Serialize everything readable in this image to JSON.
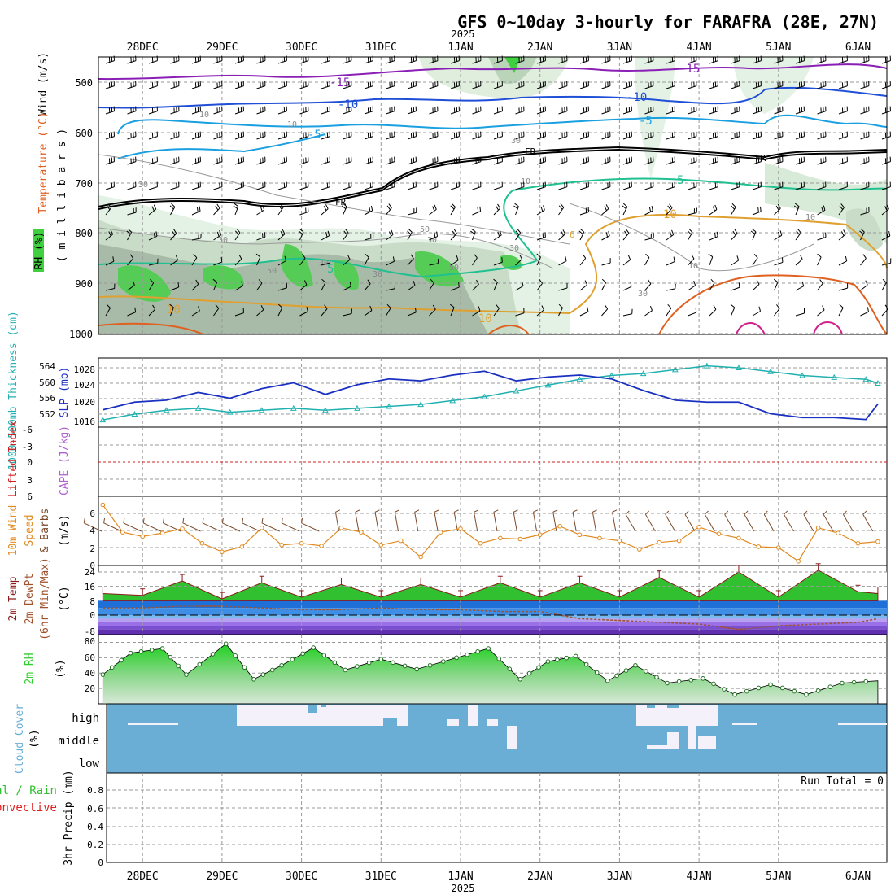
{
  "title": "GFS 0~10day 3-hourly for FARAFRA (28E, 27N)",
  "colors": {
    "rh_green": "#3fcf3f",
    "rh_light": "#e4f2e6",
    "rh_mid": "#c8dcc8",
    "rh_dark": "#a8bba8",
    "temp_purple": "#8a1fb5",
    "temp_blue": "#1f4fd6",
    "temp_cyan": "#1aa0e0",
    "temp_fr": "#000000",
    "temp_teal": "#20c090",
    "temp_orange": "#e0a030",
    "temp_red_orange": "#e06020",
    "temp_magenta": "#d0208a",
    "thickness": "#20b0b0",
    "slp": "#1a30c0",
    "lifted_index": "#d02020",
    "cape": "#b060d0",
    "wind10m": "#e08a20",
    "barb_gray": "#555555",
    "temp_fill_green": "#30c030",
    "dewpt": "#a0522d",
    "rh2m_green": "#2fcf2f",
    "cloud_blue": "#6aaed6",
    "cloud_white": "#f4f1fa",
    "precip_green": "#30c030",
    "precip_red": "#e02020"
  },
  "dates": {
    "labels": [
      "28DEC",
      "29DEC",
      "30DEC",
      "31DEC",
      "1JAN",
      "2JAN",
      "3JAN",
      "4JAN",
      "5JAN",
      "6JAN"
    ],
    "year_label": "2025",
    "year_at": "1JAN"
  },
  "panels": {
    "upper": {
      "ylabels": {
        "wind": "Wind (m/s)",
        "temp": "Temperature (°C)",
        "rh": "RH (%)",
        "pressure": "( m i l l i b a r s )"
      },
      "pressure_ticks": [
        500,
        600,
        700,
        800,
        900,
        1000
      ],
      "contour_labels": [
        "-15",
        "-15",
        "-10",
        "-10",
        "-5",
        "-5",
        "FR",
        "FR",
        "FR",
        "5",
        "5",
        "10",
        "10",
        "10",
        "6"
      ],
      "rh_labels": [
        "30",
        "30",
        "30",
        "50",
        "30",
        "10",
        "10",
        "30",
        "50",
        "30",
        "10",
        "10",
        "30",
        "10",
        "30",
        "50"
      ]
    },
    "slp": {
      "ylabel_thick": "1000-500mb Thickness (dm)",
      "ylabel_slp": "SLP (mb)",
      "thick_ticks": [
        "564",
        "560",
        "556",
        "552"
      ],
      "slp_ticks": [
        "1028",
        "1024",
        "1020",
        "1016"
      ]
    },
    "li": {
      "ylabel_li": "Lifted Index",
      "ylabel_cape": "CAPE (J/kg)",
      "ticks": [
        "-6",
        "-3",
        "0",
        "3",
        "6"
      ]
    },
    "wind": {
      "ylabel1": "10m Wind",
      "ylabel2": "Speed",
      "ylabel3": "& Barbs",
      "unit": "(m/s)",
      "ticks": [
        "6",
        "4",
        "2",
        "0"
      ]
    },
    "temp2m": {
      "ylabel1": "2m Temp",
      "ylabel2": "2m DewPt",
      "ylabel3": "(6hr Min/Max)",
      "unit": "(°C)",
      "ticks": [
        "24",
        "16",
        "8",
        "0",
        "-8"
      ]
    },
    "rh2m": {
      "ylabel": "2m RH",
      "unit": "(%)",
      "ticks": [
        "80",
        "60",
        "40",
        "20"
      ]
    },
    "cloud": {
      "ylabel1": "Cloud Cover",
      "ylabel2": "(%)",
      "levels": [
        "high",
        "middle",
        "low"
      ]
    },
    "precip": {
      "ylabel_total": "Total / Rain",
      "ylabel_conv": "Convective",
      "ylabel_axis": "3hr Precip (mm)",
      "ticks": [
        "0.8",
        "0.6",
        "0.4",
        "0.2",
        "0"
      ],
      "run_total": "Run Total = 0"
    }
  },
  "chart_data": [
    {
      "type": "line",
      "title": "1000-500mb Thickness (dm) and SLP (mb)",
      "series": [
        {
          "name": "Thickness (dm)",
          "values": [
            550.5,
            552,
            553,
            553.5,
            552.5,
            553,
            553.5,
            553,
            553.5,
            554,
            554.5,
            555.5,
            556.5,
            558,
            559.5,
            561,
            562,
            562.5,
            563.5,
            564.5,
            564,
            563,
            562,
            561.5,
            561,
            560
          ]
        },
        {
          "name": "SLP (mb)",
          "values": [
            1019,
            1021,
            1021.5,
            1023.5,
            1022,
            1024.5,
            1026,
            1023,
            1025.5,
            1027,
            1026.5,
            1028,
            1029,
            1026.5,
            1027.5,
            1028,
            1027,
            1024,
            1021.5,
            1021,
            1021,
            1018,
            1017,
            1017,
            1016.5,
            1020.5
          ]
        }
      ],
      "x": [
        27.5,
        27.9,
        28.3,
        28.7,
        29.1,
        29.5,
        29.9,
        30.3,
        30.7,
        31.1,
        31.5,
        31.9,
        32.3,
        32.7,
        33.1,
        33.5,
        33.9,
        34.3,
        34.7,
        35.1,
        35.5,
        35.9,
        36.3,
        36.7,
        37.1,
        37.25
      ]
    },
    {
      "type": "line",
      "title": "10m Wind Speed (m/s)",
      "x": [
        27.5,
        27.75,
        28.0,
        28.25,
        28.5,
        28.75,
        29.0,
        29.25,
        29.5,
        29.75,
        30.0,
        30.25,
        30.5,
        30.75,
        31.0,
        31.25,
        31.5,
        31.75,
        32.0,
        32.25,
        32.5,
        32.75,
        33.0,
        33.25,
        33.5,
        33.75,
        34.0,
        34.25,
        34.5,
        34.75,
        35.0,
        35.25,
        35.5,
        35.75,
        36.0,
        36.25,
        36.5,
        36.75,
        37.0,
        37.25
      ],
      "values": [
        7,
        3.8,
        3.3,
        3.7,
        4.2,
        2.5,
        1.5,
        2.1,
        4.3,
        2.3,
        2.5,
        2.2,
        4.3,
        3.8,
        2.3,
        2.8,
        0.9,
        3.8,
        4.2,
        2.5,
        3.1,
        3.0,
        3.5,
        4.5,
        3.5,
        3.1,
        2.8,
        1.8,
        2.6,
        2.8,
        4.4,
        3.6,
        3.1,
        2.1,
        2.0,
        0.4,
        4.3,
        3.7,
        2.5,
        2.7
      ],
      "ylim": [
        0,
        7
      ]
    },
    {
      "type": "area",
      "title": "2m Temp / DewPt (°C)",
      "x": [
        27.5,
        28.0,
        28.5,
        29.0,
        29.5,
        30.0,
        30.5,
        31.0,
        31.5,
        32.0,
        32.5,
        33.0,
        33.5,
        34.0,
        34.5,
        35.0,
        35.5,
        36.0,
        36.5,
        37.0,
        37.25
      ],
      "temp": [
        12,
        11,
        19,
        9,
        18,
        10,
        17,
        10,
        17,
        10,
        18,
        10,
        18,
        10,
        21,
        10,
        24,
        10,
        25,
        13,
        12
      ],
      "dewpt": [
        4,
        4,
        5,
        5,
        4,
        3,
        3,
        4,
        3,
        3,
        2,
        2,
        -2,
        -3,
        -4,
        -5,
        -8,
        -6,
        -5,
        -4,
        -2
      ],
      "ylim": [
        -10,
        25
      ]
    },
    {
      "type": "area",
      "title": "2m RH (%)",
      "x": [
        27.5,
        27.85,
        28.25,
        28.55,
        29.05,
        29.4,
        29.75,
        30.15,
        30.55,
        31.0,
        31.45,
        31.95,
        32.35,
        32.75,
        33.1,
        33.45,
        33.85,
        34.2,
        34.6,
        35.05,
        35.45,
        35.9,
        36.35,
        36.8,
        37.25
      ],
      "values": [
        38,
        66,
        72,
        38,
        78,
        32,
        50,
        73,
        44,
        58,
        45,
        60,
        72,
        32,
        55,
        62,
        30,
        50,
        27,
        33,
        12,
        25,
        12,
        27,
        30
      ],
      "ylim": [
        0,
        90
      ]
    },
    {
      "type": "line",
      "title": "3hr Precip (mm)",
      "values": [
        0
      ],
      "ylim": [
        0,
        1
      ]
    }
  ]
}
